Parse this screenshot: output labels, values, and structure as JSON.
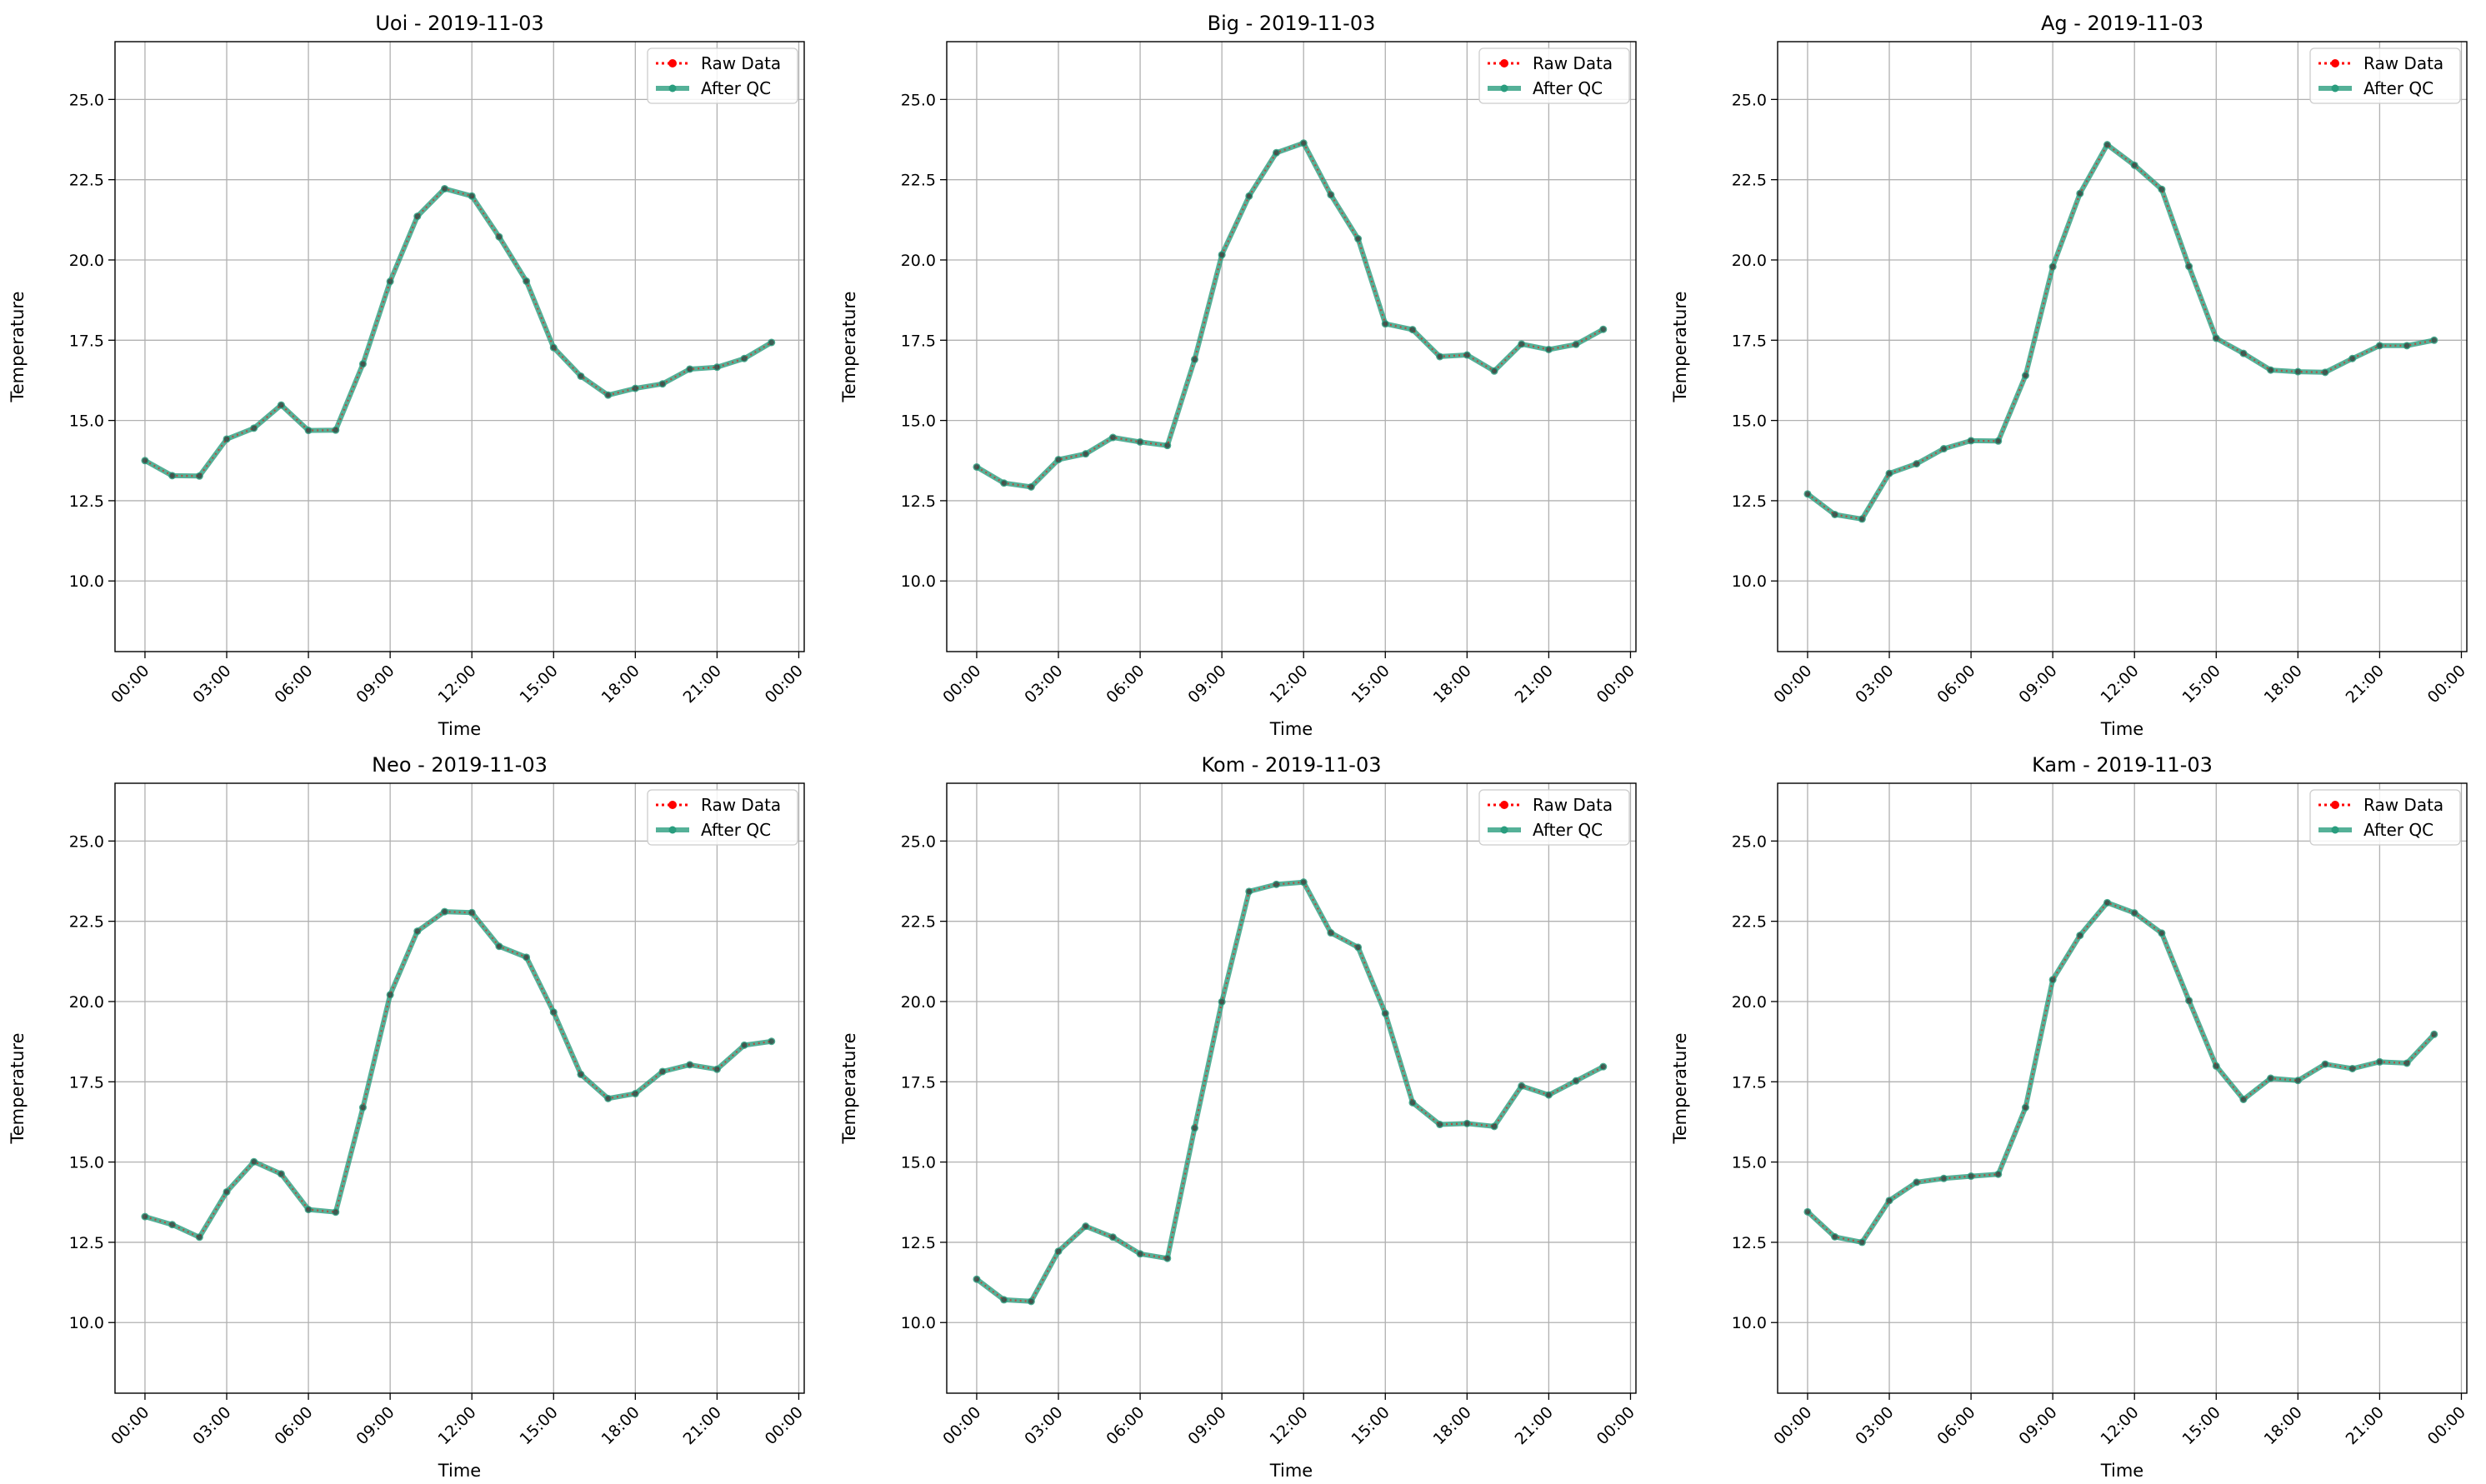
{
  "colors": {
    "raw": "#ff0000",
    "qc": "#2a9d7e",
    "grid": "#b0b0b0",
    "axis": "#000000",
    "legend_border": "#cccccc"
  },
  "legend": {
    "raw_label": "Raw Data",
    "qc_label": "After QC"
  },
  "chart_data": [
    {
      "type": "line",
      "title": "Uoi - 2019-11-03",
      "xlabel": "Time",
      "ylabel": "Temperature",
      "xlim": [
        -1.1,
        24.2
      ],
      "ylim": [
        7.8,
        26.8
      ],
      "xticks": [
        0,
        3,
        6,
        9,
        12,
        15,
        18,
        21,
        24
      ],
      "xtick_labels": [
        "00:00",
        "03:00",
        "06:00",
        "09:00",
        "12:00",
        "15:00",
        "18:00",
        "21:00",
        "00:00"
      ],
      "yticks": [
        10.0,
        12.5,
        15.0,
        17.5,
        20.0,
        22.5,
        25.0
      ],
      "ytick_labels": [
        "10.0",
        "12.5",
        "15.0",
        "17.5",
        "20.0",
        "22.5",
        "25.0"
      ],
      "grid": true,
      "legend_position": "upper right",
      "x": [
        0,
        1,
        2,
        3,
        4,
        5,
        6,
        7,
        8,
        9,
        10,
        11,
        12,
        13,
        14,
        15,
        16,
        17,
        18,
        19,
        20,
        21,
        22,
        23
      ],
      "series": [
        {
          "name": "Raw Data",
          "style": "dotted-markers",
          "values": [
            13.75,
            13.28,
            13.27,
            14.42,
            14.76,
            15.48,
            14.69,
            14.7,
            16.76,
            19.33,
            21.36,
            22.22,
            21.99,
            20.72,
            19.34,
            17.27,
            16.38,
            15.79,
            16.0,
            16.14,
            16.6,
            16.66,
            16.93,
            17.43
          ]
        },
        {
          "name": "After QC",
          "style": "solid",
          "values": [
            13.75,
            13.28,
            13.27,
            14.42,
            14.76,
            15.48,
            14.69,
            14.7,
            16.76,
            19.33,
            21.36,
            22.22,
            21.99,
            20.72,
            19.34,
            17.27,
            16.38,
            15.79,
            16.0,
            16.14,
            16.6,
            16.66,
            16.93,
            17.43
          ]
        }
      ]
    },
    {
      "type": "line",
      "title": "Big - 2019-11-03",
      "xlabel": "Time",
      "ylabel": "Temperature",
      "xlim": [
        -1.1,
        24.2
      ],
      "ylim": [
        7.8,
        26.8
      ],
      "xticks": [
        0,
        3,
        6,
        9,
        12,
        15,
        18,
        21,
        24
      ],
      "xtick_labels": [
        "00:00",
        "03:00",
        "06:00",
        "09:00",
        "12:00",
        "15:00",
        "18:00",
        "21:00",
        "00:00"
      ],
      "yticks": [
        10.0,
        12.5,
        15.0,
        17.5,
        20.0,
        22.5,
        25.0
      ],
      "ytick_labels": [
        "10.0",
        "12.5",
        "15.0",
        "17.5",
        "20.0",
        "22.5",
        "25.0"
      ],
      "grid": true,
      "legend_position": "upper right",
      "x": [
        0,
        1,
        2,
        3,
        4,
        5,
        6,
        7,
        8,
        9,
        10,
        11,
        12,
        13,
        14,
        15,
        16,
        17,
        18,
        19,
        20,
        21,
        22,
        23
      ],
      "series": [
        {
          "name": "Raw Data",
          "style": "dotted-markers",
          "values": [
            13.55,
            13.05,
            12.93,
            13.78,
            13.96,
            14.47,
            14.33,
            14.22,
            16.9,
            20.16,
            21.99,
            23.34,
            23.64,
            22.03,
            20.66,
            18.01,
            17.83,
            16.99,
            17.04,
            16.54,
            17.38,
            17.21,
            17.37,
            17.84
          ]
        },
        {
          "name": "After QC",
          "style": "solid",
          "values": [
            13.55,
            13.05,
            12.93,
            13.78,
            13.96,
            14.47,
            14.33,
            14.22,
            16.9,
            20.16,
            21.99,
            23.34,
            23.64,
            22.03,
            20.66,
            18.01,
            17.83,
            16.99,
            17.04,
            16.54,
            17.38,
            17.21,
            17.37,
            17.84
          ]
        }
      ]
    },
    {
      "type": "line",
      "title": "Ag - 2019-11-03",
      "xlabel": "Time",
      "ylabel": "Temperature",
      "xlim": [
        -1.1,
        24.2
      ],
      "ylim": [
        7.8,
        26.8
      ],
      "xticks": [
        0,
        3,
        6,
        9,
        12,
        15,
        18,
        21,
        24
      ],
      "xtick_labels": [
        "00:00",
        "03:00",
        "06:00",
        "09:00",
        "12:00",
        "15:00",
        "18:00",
        "21:00",
        "00:00"
      ],
      "yticks": [
        10.0,
        12.5,
        15.0,
        17.5,
        20.0,
        22.5,
        25.0
      ],
      "ytick_labels": [
        "10.0",
        "12.5",
        "15.0",
        "17.5",
        "20.0",
        "22.5",
        "25.0"
      ],
      "grid": true,
      "legend_position": "upper right",
      "x": [
        0,
        1,
        2,
        3,
        4,
        5,
        6,
        7,
        8,
        9,
        10,
        11,
        12,
        13,
        14,
        15,
        16,
        17,
        18,
        19,
        20,
        21,
        22,
        23
      ],
      "series": [
        {
          "name": "Raw Data",
          "style": "dotted-markers",
          "values": [
            12.71,
            12.07,
            11.93,
            13.35,
            13.65,
            14.12,
            14.37,
            14.36,
            16.4,
            19.79,
            22.07,
            23.59,
            22.95,
            22.2,
            19.8,
            17.56,
            17.09,
            16.57,
            16.52,
            16.5,
            16.93,
            17.33,
            17.33,
            17.5
          ]
        },
        {
          "name": "After QC",
          "style": "solid",
          "values": [
            12.71,
            12.07,
            11.93,
            13.35,
            13.65,
            14.12,
            14.37,
            14.36,
            16.4,
            19.79,
            22.07,
            23.59,
            22.95,
            22.2,
            19.8,
            17.56,
            17.09,
            16.57,
            16.52,
            16.5,
            16.93,
            17.33,
            17.33,
            17.5
          ]
        }
      ]
    },
    {
      "type": "line",
      "title": "Neo - 2019-11-03",
      "xlabel": "Time",
      "ylabel": "Temperature",
      "xlim": [
        -1.1,
        24.2
      ],
      "ylim": [
        7.8,
        26.8
      ],
      "xticks": [
        0,
        3,
        6,
        9,
        12,
        15,
        18,
        21,
        24
      ],
      "xtick_labels": [
        "00:00",
        "03:00",
        "06:00",
        "09:00",
        "12:00",
        "15:00",
        "18:00",
        "21:00",
        "00:00"
      ],
      "yticks": [
        10.0,
        12.5,
        15.0,
        17.5,
        20.0,
        22.5,
        25.0
      ],
      "ytick_labels": [
        "10.0",
        "12.5",
        "15.0",
        "17.5",
        "20.0",
        "22.5",
        "25.0"
      ],
      "grid": true,
      "legend_position": "upper right",
      "x": [
        0,
        1,
        2,
        3,
        4,
        5,
        6,
        7,
        8,
        9,
        10,
        11,
        12,
        13,
        14,
        15,
        16,
        17,
        18,
        19,
        20,
        21,
        22,
        23
      ],
      "series": [
        {
          "name": "Raw Data",
          "style": "dotted-markers",
          "values": [
            13.3,
            13.05,
            12.66,
            14.07,
            15.01,
            14.63,
            13.52,
            13.44,
            16.7,
            20.21,
            22.19,
            22.8,
            22.77,
            21.72,
            21.38,
            19.67,
            17.73,
            16.98,
            17.13,
            17.82,
            18.03,
            17.89,
            18.64,
            18.76
          ]
        },
        {
          "name": "After QC",
          "style": "solid",
          "values": [
            13.3,
            13.05,
            12.66,
            14.07,
            15.01,
            14.63,
            13.52,
            13.44,
            16.7,
            20.21,
            22.19,
            22.8,
            22.77,
            21.72,
            21.38,
            19.67,
            17.73,
            16.98,
            17.13,
            17.82,
            18.03,
            17.89,
            18.64,
            18.76
          ]
        }
      ]
    },
    {
      "type": "line",
      "title": "Kom - 2019-11-03",
      "xlabel": "Time",
      "ylabel": "Temperature",
      "xlim": [
        -1.1,
        24.2
      ],
      "ylim": [
        7.8,
        26.8
      ],
      "xticks": [
        0,
        3,
        6,
        9,
        12,
        15,
        18,
        21,
        24
      ],
      "xtick_labels": [
        "00:00",
        "03:00",
        "06:00",
        "09:00",
        "12:00",
        "15:00",
        "18:00",
        "21:00",
        "00:00"
      ],
      "yticks": [
        10.0,
        12.5,
        15.0,
        17.5,
        20.0,
        22.5,
        25.0
      ],
      "ytick_labels": [
        "10.0",
        "12.5",
        "15.0",
        "17.5",
        "20.0",
        "22.5",
        "25.0"
      ],
      "grid": true,
      "legend_position": "upper right",
      "x": [
        0,
        1,
        2,
        3,
        4,
        5,
        6,
        7,
        8,
        9,
        10,
        11,
        12,
        13,
        14,
        15,
        16,
        17,
        18,
        19,
        20,
        21,
        22,
        23
      ],
      "series": [
        {
          "name": "Raw Data",
          "style": "dotted-markers",
          "values": [
            11.35,
            10.71,
            10.66,
            12.22,
            13.0,
            12.66,
            12.14,
            12.0,
            16.06,
            19.99,
            23.43,
            23.65,
            23.72,
            22.14,
            21.69,
            19.63,
            16.85,
            16.17,
            16.2,
            16.11,
            17.37,
            17.09,
            17.53,
            17.97
          ]
        },
        {
          "name": "After QC",
          "style": "solid",
          "values": [
            11.35,
            10.71,
            10.66,
            12.22,
            13.0,
            12.66,
            12.14,
            12.0,
            16.06,
            19.99,
            23.43,
            23.65,
            23.72,
            22.14,
            21.69,
            19.63,
            16.85,
            16.17,
            16.2,
            16.11,
            17.37,
            17.09,
            17.53,
            17.97
          ]
        }
      ]
    },
    {
      "type": "line",
      "title": "Kam - 2019-11-03",
      "xlabel": "Time",
      "ylabel": "Temperature",
      "xlim": [
        -1.1,
        24.2
      ],
      "ylim": [
        7.8,
        26.8
      ],
      "xticks": [
        0,
        3,
        6,
        9,
        12,
        15,
        18,
        21,
        24
      ],
      "xtick_labels": [
        "00:00",
        "03:00",
        "06:00",
        "09:00",
        "12:00",
        "15:00",
        "18:00",
        "21:00",
        "00:00"
      ],
      "yticks": [
        10.0,
        12.5,
        15.0,
        17.5,
        20.0,
        22.5,
        25.0
      ],
      "ytick_labels": [
        "10.0",
        "12.5",
        "15.0",
        "17.5",
        "20.0",
        "22.5",
        "25.0"
      ],
      "grid": true,
      "legend_position": "upper right",
      "x": [
        0,
        1,
        2,
        3,
        4,
        5,
        6,
        7,
        8,
        9,
        10,
        11,
        12,
        13,
        14,
        15,
        16,
        17,
        18,
        19,
        20,
        21,
        22,
        23
      ],
      "series": [
        {
          "name": "Raw Data",
          "style": "dotted-markers",
          "values": [
            13.45,
            12.67,
            12.5,
            13.8,
            14.37,
            14.49,
            14.56,
            14.62,
            16.7,
            20.68,
            22.06,
            23.08,
            22.76,
            22.13,
            20.03,
            17.99,
            16.95,
            17.61,
            17.54,
            18.05,
            17.91,
            18.12,
            18.08,
            18.98
          ]
        },
        {
          "name": "After QC",
          "style": "solid",
          "values": [
            13.45,
            12.67,
            12.5,
            13.8,
            14.37,
            14.49,
            14.56,
            14.62,
            16.7,
            20.68,
            22.06,
            23.08,
            22.76,
            22.13,
            20.03,
            17.99,
            16.95,
            17.61,
            17.54,
            18.05,
            17.91,
            18.12,
            18.08,
            18.98
          ]
        }
      ]
    }
  ]
}
